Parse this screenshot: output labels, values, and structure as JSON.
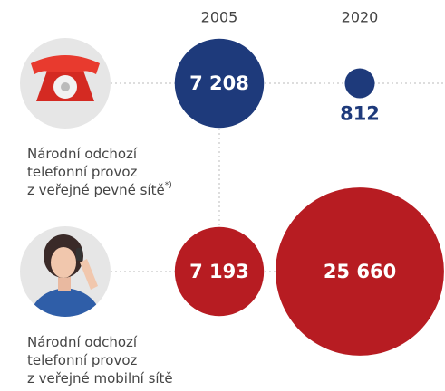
{
  "chart_data": {
    "type": "bubble",
    "categories": [
      "2005",
      "2020"
    ],
    "series": [
      {
        "label_lines": [
          "Národní odchozí",
          "telefonní provoz",
          "z veřejné pevné sítě"
        ],
        "footnote_mark": "*)",
        "color": "#1e3a7b",
        "values": [
          7208,
          812
        ],
        "value_labels": [
          "7 208",
          "812"
        ]
      },
      {
        "label_lines": [
          "Národní odchozí",
          "telefonní provoz",
          "z veřejné mobilní sítě"
        ],
        "color": "#b71c22",
        "values": [
          7193,
          25660
        ],
        "value_labels": [
          "7 193",
          "25 660"
        ]
      }
    ]
  }
}
